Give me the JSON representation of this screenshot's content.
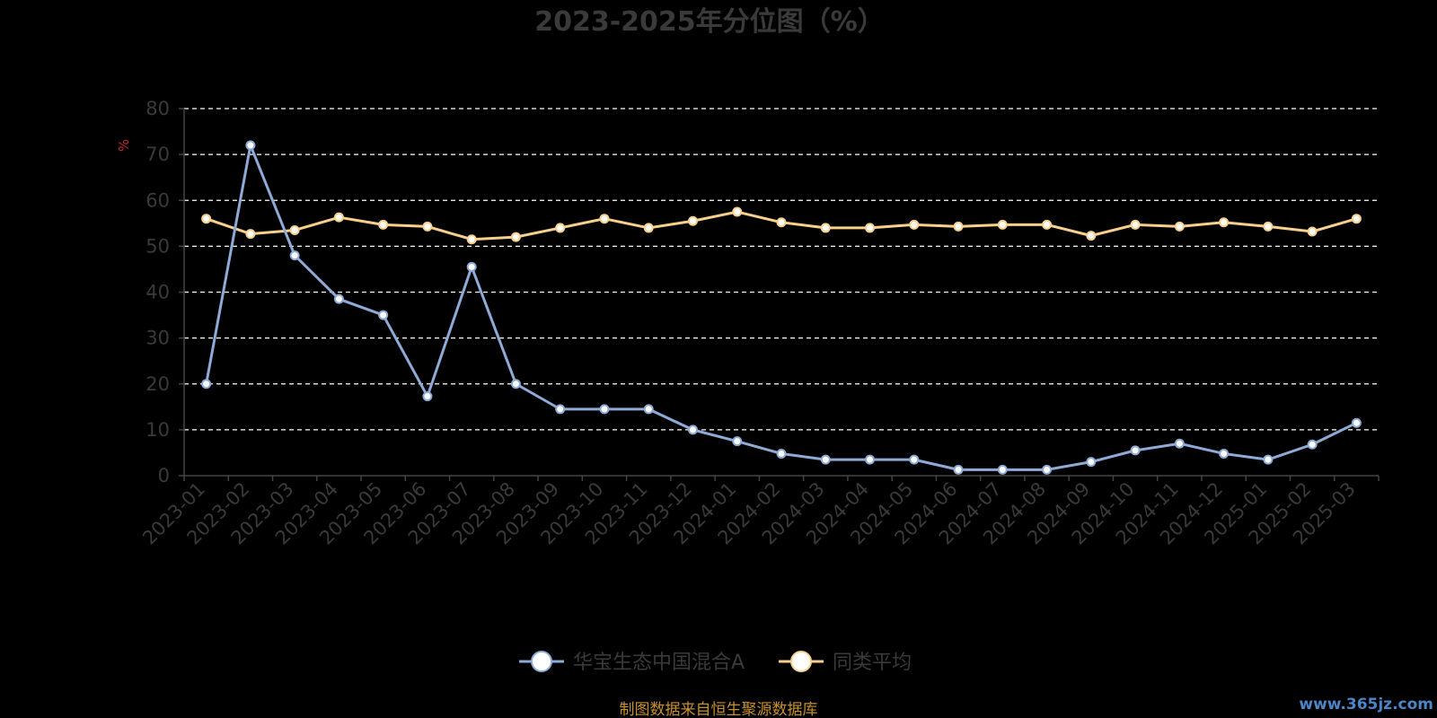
{
  "chart_data": {
    "type": "line",
    "title": "2023-2025年分位图（%）",
    "ylabel": "%",
    "ylim": [
      0,
      80
    ],
    "yticks": [
      0,
      10,
      20,
      30,
      40,
      50,
      60,
      70,
      80
    ],
    "grid": true,
    "legend_position": "bottom-center",
    "categories": [
      "2023-01",
      "2023-02",
      "2023-03",
      "2023-04",
      "2023-05",
      "2023-06",
      "2023-07",
      "2023-08",
      "2023-09",
      "2023-10",
      "2023-11",
      "2023-12",
      "2024-01",
      "2024-02",
      "2024-03",
      "2024-04",
      "2024-05",
      "2024-06",
      "2024-07",
      "2024-08",
      "2024-09",
      "2024-10",
      "2024-11",
      "2024-12",
      "2025-01",
      "2025-02",
      "2025-03"
    ],
    "series": [
      {
        "name": "华宝生态中国混合A",
        "color": "#8eaad6",
        "values": [
          20,
          72,
          48,
          38.5,
          35,
          17.3,
          45.5,
          20,
          14.5,
          14.5,
          14.5,
          10,
          7.5,
          4.8,
          3.5,
          3.5,
          3.5,
          1.3,
          1.3,
          1.3,
          3,
          5.5,
          7,
          4.8,
          3.5,
          6.8,
          11.5
        ]
      },
      {
        "name": "同类平均",
        "color": "#f8d08c",
        "values": [
          56,
          52.7,
          53.5,
          56.3,
          54.7,
          54.3,
          51.5,
          52,
          54,
          56,
          54,
          55.5,
          57.5,
          55.2,
          54,
          54,
          54.7,
          54.3,
          54.7,
          54.7,
          52.3,
          54.7,
          54.3,
          55.2,
          54.3,
          53.2,
          56
        ]
      }
    ]
  },
  "footer": {
    "source": "制图数据来自恒生聚源数据库",
    "watermark": "www.365jz.com"
  }
}
